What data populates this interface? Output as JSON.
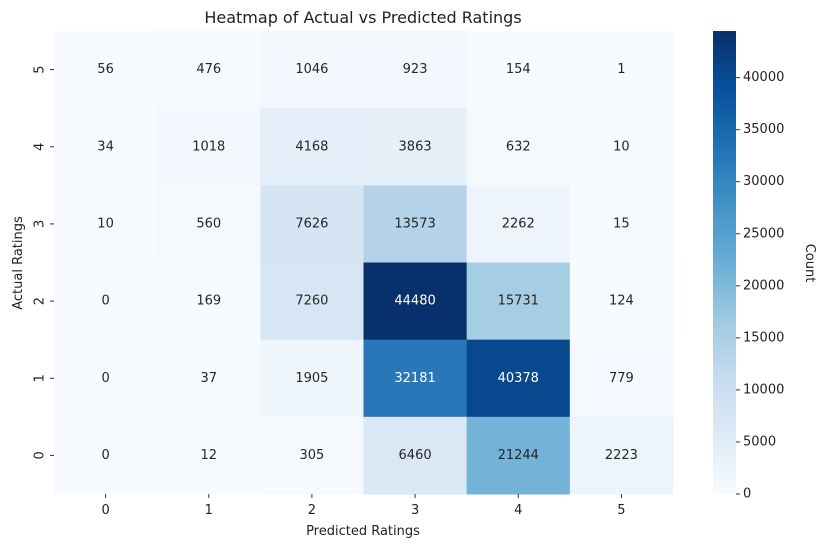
{
  "chart_data": {
    "type": "heatmap",
    "title": "Heatmap of Actual vs Predicted Ratings",
    "xlabel": "Predicted Ratings",
    "ylabel": "Actual Ratings",
    "x_categories": [
      "0",
      "1",
      "2",
      "3",
      "4",
      "5"
    ],
    "y_categories_top_to_bottom": [
      "5",
      "4",
      "3",
      "2",
      "1",
      "0"
    ],
    "values_top_to_bottom": [
      [
        56,
        476,
        1046,
        923,
        154,
        1
      ],
      [
        34,
        1018,
        4168,
        3863,
        632,
        10
      ],
      [
        10,
        560,
        7626,
        13573,
        2262,
        15
      ],
      [
        0,
        169,
        7260,
        44480,
        15731,
        124
      ],
      [
        0,
        37,
        1905,
        32181,
        40378,
        779
      ],
      [
        0,
        12,
        305,
        6460,
        21244,
        2223
      ]
    ],
    "colorbar": {
      "label": "Count",
      "min": 0,
      "max": 44480,
      "ticks": [
        0,
        5000,
        10000,
        15000,
        20000,
        25000,
        30000,
        35000,
        40000
      ],
      "colormap": "Blues",
      "color_low": "#f7fbff",
      "color_high": "#08306b"
    }
  }
}
